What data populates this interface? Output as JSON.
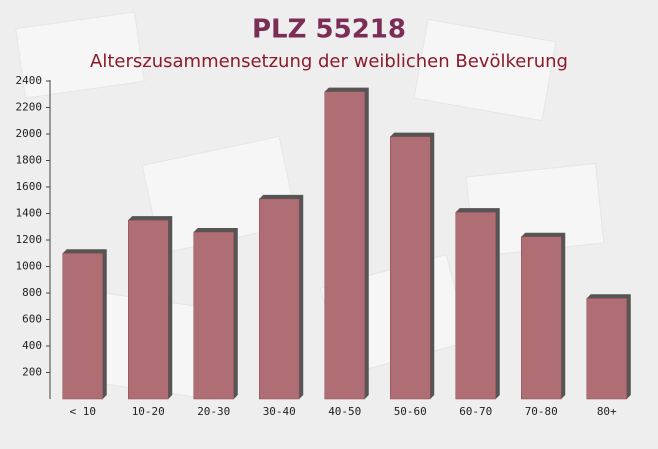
{
  "chart_data": {
    "type": "bar",
    "title": "PLZ 55218",
    "subtitle": "Alterszusammensetzung der weiblichen Bevölkerung",
    "categories": [
      "< 10",
      "10-20",
      "20-30",
      "30-40",
      "40-50",
      "50-60",
      "60-70",
      "70-80",
      "80+"
    ],
    "values": [
      1100,
      1350,
      1260,
      1510,
      2320,
      1980,
      1410,
      1225,
      760
    ],
    "color": "#c0727a",
    "ylim": [
      0,
      2400
    ],
    "yticks": [
      200,
      400,
      600,
      800,
      1000,
      1200,
      1400,
      1600,
      1800,
      2000,
      2200,
      2400
    ]
  }
}
